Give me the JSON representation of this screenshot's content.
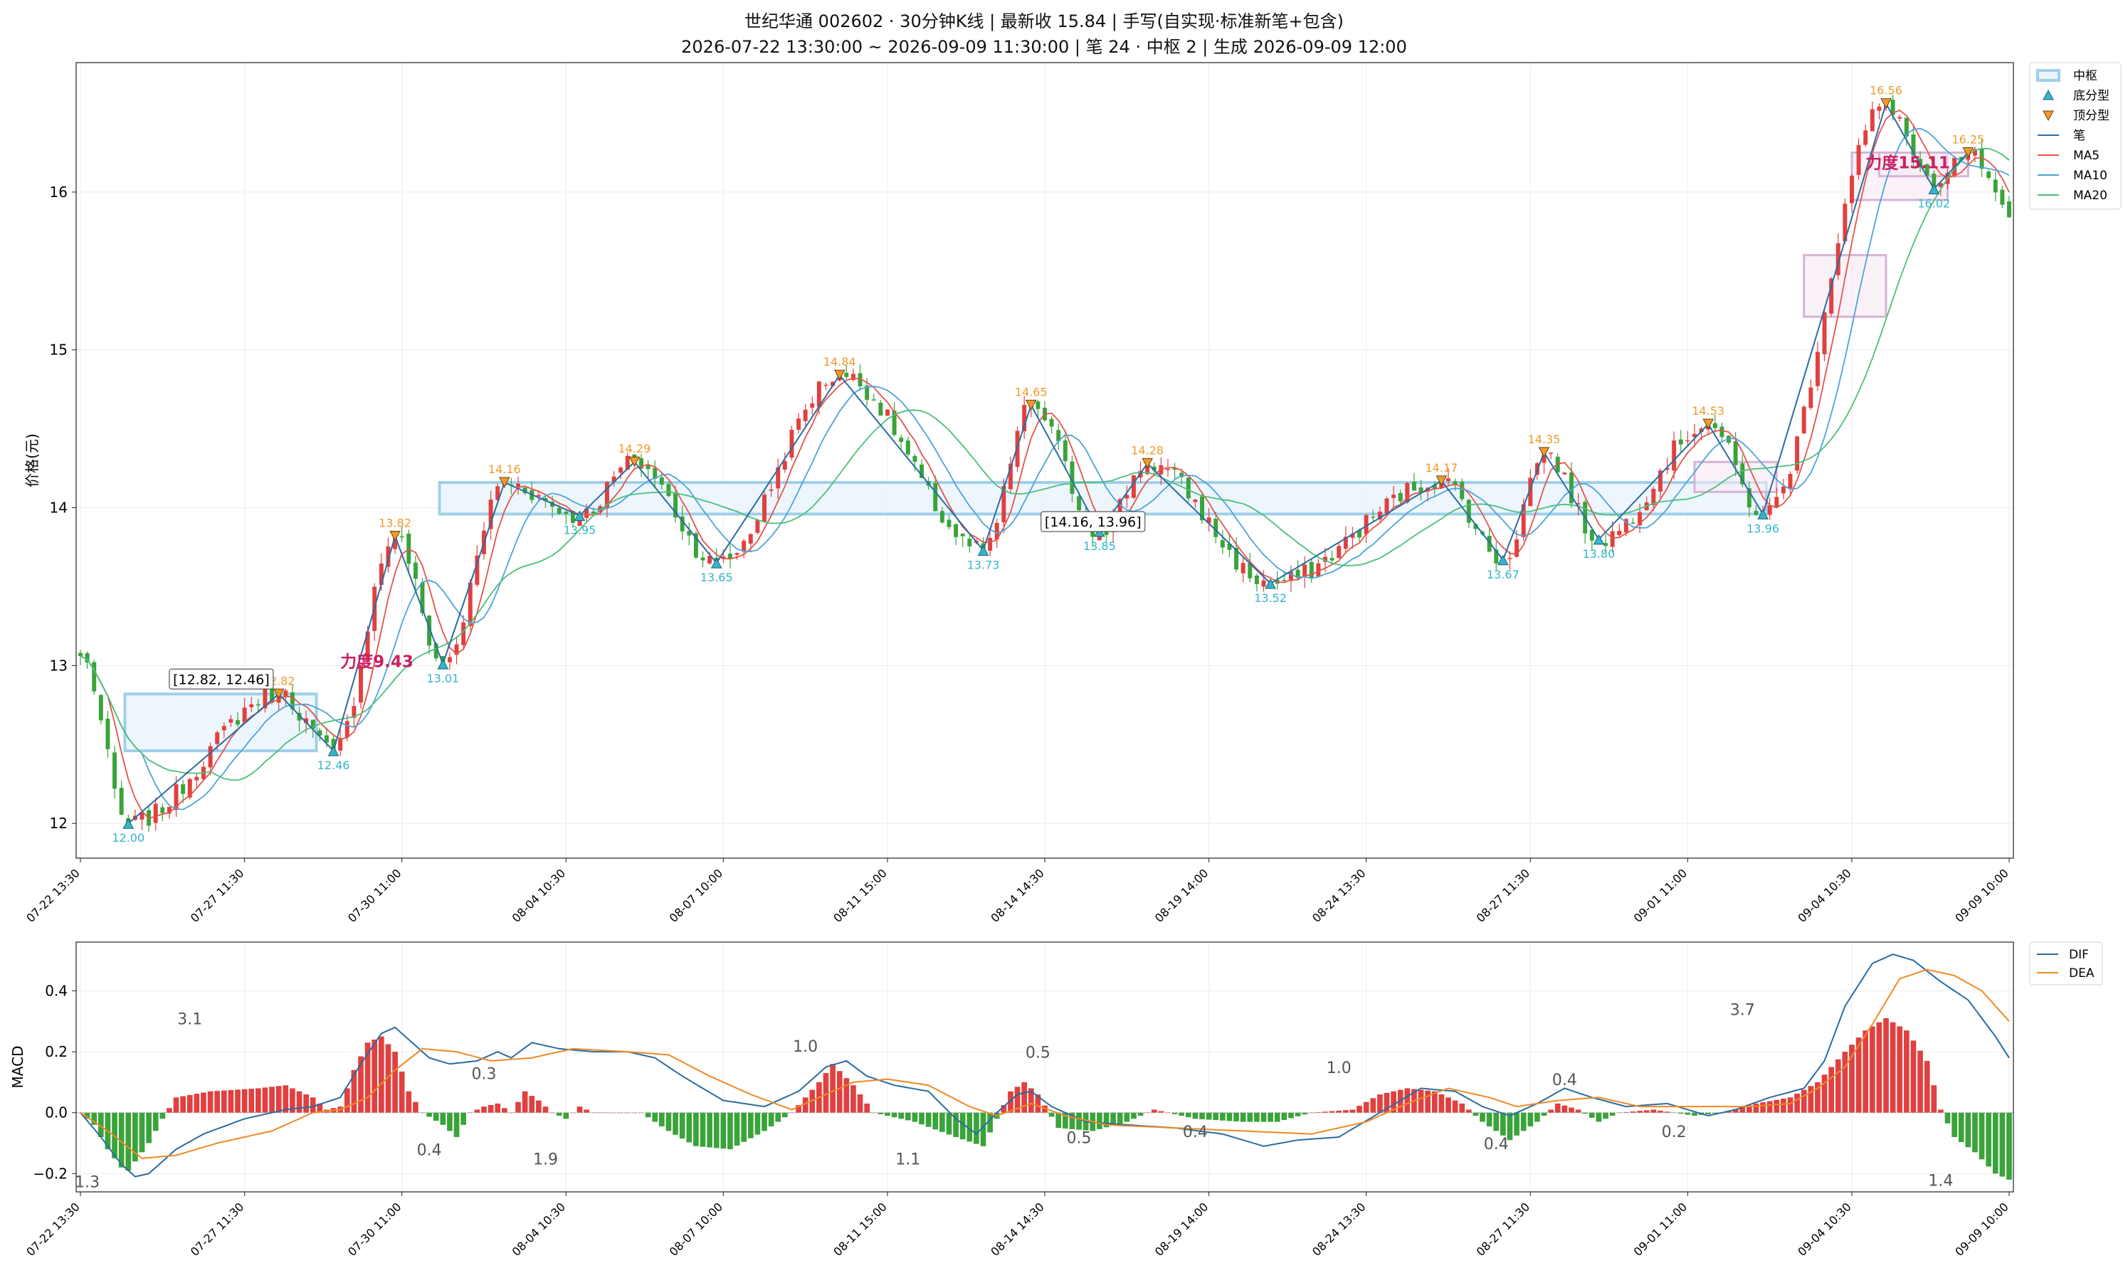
{
  "title": {
    "line1": "世纪华通 002602 · 30分钟K线 | 最新收 15.84 | 手写(自实现·标准新笔+包含)",
    "line2": "2026-07-22 13:30:00 ~ 2026-09-09 11:30:00 | 笔 24 · 中枢 2 | 生成 2026-09-09 12:00"
  },
  "colors": {
    "up": "#e0403f",
    "down": "#3aa33a",
    "bi": "#2b6ca3",
    "ma5": "#e5534b",
    "ma10": "#4ea3d8",
    "ma20": "#4cbf7a",
    "center_fill": "#eaf4fb",
    "center_edge": "#9fcfe9",
    "bottom": "#33b6c9",
    "top": "#f09a2a",
    "dif": "#2b6ca3",
    "dea": "#f08a24",
    "force": "#cc1e63"
  },
  "legend_price": [
    "中枢",
    "底分型",
    "顶分型",
    "笔",
    "MA5",
    "MA10",
    "MA20"
  ],
  "legend_macd": [
    "DIF",
    "DEA"
  ],
  "chart_data": [
    {
      "type": "candlestick",
      "ylabel": "价格(元)",
      "ylim": [
        11.78,
        16.82
      ],
      "yticks": [
        12,
        13,
        14,
        15,
        16
      ],
      "xticks": [
        "07-22 13:30",
        "07-27 11:30",
        "07-30 11:00",
        "08-04 10:30",
        "08-07 10:00",
        "08-11 15:00",
        "08-14 14:30",
        "08-19 14:00",
        "08-24 13:30",
        "08-27 11:30",
        "09-01 11:00",
        "09-04 10:30",
        "09-09 10:00"
      ],
      "n_bars": 283,
      "bi_points": [
        {
          "i": 7,
          "p": 12.0,
          "kind": "bottom"
        },
        {
          "i": 29,
          "p": 12.82,
          "kind": "top"
        },
        {
          "i": 37,
          "p": 12.46,
          "kind": "bottom"
        },
        {
          "i": 46,
          "p": 13.82,
          "kind": "top"
        },
        {
          "i": 53,
          "p": 13.01,
          "kind": "bottom"
        },
        {
          "i": 62,
          "p": 14.16,
          "kind": "top"
        },
        {
          "i": 73,
          "p": 13.95,
          "kind": "bottom"
        },
        {
          "i": 81,
          "p": 14.29,
          "kind": "top"
        },
        {
          "i": 93,
          "p": 13.65,
          "kind": "bottom"
        },
        {
          "i": 111,
          "p": 14.84,
          "kind": "top"
        },
        {
          "i": 132,
          "p": 13.73,
          "kind": "bottom"
        },
        {
          "i": 139,
          "p": 14.65,
          "kind": "top"
        },
        {
          "i": 149,
          "p": 13.85,
          "kind": "bottom"
        },
        {
          "i": 156,
          "p": 14.28,
          "kind": "top"
        },
        {
          "i": 174,
          "p": 13.52,
          "kind": "bottom"
        },
        {
          "i": 199,
          "p": 14.17,
          "kind": "top"
        },
        {
          "i": 208,
          "p": 13.67,
          "kind": "bottom"
        },
        {
          "i": 214,
          "p": 14.35,
          "kind": "top"
        },
        {
          "i": 222,
          "p": 13.8,
          "kind": "bottom"
        },
        {
          "i": 238,
          "p": 14.53,
          "kind": "top"
        },
        {
          "i": 246,
          "p": 13.96,
          "kind": "bottom"
        },
        {
          "i": 264,
          "p": 16.56,
          "kind": "top"
        },
        {
          "i": 271,
          "p": 16.02,
          "kind": "bottom"
        },
        {
          "i": 276,
          "p": 16.25,
          "kind": "top"
        }
      ],
      "centers": [
        {
          "i0": 7,
          "i1": 34,
          "top": 12.82,
          "bottom": 12.46,
          "label": "[12.82, 12.46]"
        },
        {
          "i0": 53,
          "i1": 246,
          "top": 14.16,
          "bottom": 13.96,
          "label": "[14.16, 13.96]"
        }
      ],
      "zones": [
        {
          "i0": 236,
          "i1": 248,
          "top": 14.29,
          "bottom": 14.1
        },
        {
          "i0": 252,
          "i1": 264,
          "top": 15.6,
          "bottom": 15.21
        },
        {
          "i0": 259,
          "i1": 273,
          "top": 16.25,
          "bottom": 15.95
        },
        {
          "i0": 263,
          "i1": 276,
          "top": 16.25,
          "bottom": 16.1
        }
      ],
      "force_labels": [
        {
          "i": 38,
          "p": 12.99,
          "text": "力度9.43"
        },
        {
          "i": 261,
          "p": 16.15,
          "text": "力度15.11"
        }
      ]
    },
    {
      "type": "macd",
      "ylabel": "MACD",
      "ylim": [
        -0.26,
        0.56
      ],
      "yticks": [
        -0.2,
        0.0,
        0.2,
        0.4
      ],
      "ytick_labels": [
        "−0.2",
        "0.0",
        "0.2",
        "0.4"
      ],
      "xticks": [
        "07-22 13:30",
        "07-27 11:30",
        "07-30 11:00",
        "08-04 10:30",
        "08-07 10:00",
        "08-11 15:00",
        "08-14 14:30",
        "08-19 14:00",
        "08-24 13:30",
        "08-27 11:30",
        "09-01 11:00",
        "09-04 10:30",
        "09-09 10:00"
      ],
      "hist_keyframes": [
        [
          0,
          0
        ],
        [
          2,
          -0.04
        ],
        [
          4,
          -0.12
        ],
        [
          6,
          -0.18
        ],
        [
          7,
          -0.19
        ],
        [
          10,
          -0.1
        ],
        [
          12,
          -0.02
        ],
        [
          14,
          0.05
        ],
        [
          19,
          0.07
        ],
        [
          26,
          0.08
        ],
        [
          30,
          0.09
        ],
        [
          34,
          0.05
        ],
        [
          36,
          0.01
        ],
        [
          38,
          0.02
        ],
        [
          40,
          0.14
        ],
        [
          42,
          0.23
        ],
        [
          44,
          0.25
        ],
        [
          46,
          0.2
        ],
        [
          48,
          0.07
        ],
        [
          50,
          0.0
        ],
        [
          53,
          -0.04
        ],
        [
          55,
          -0.08
        ],
        [
          57,
          0.0
        ],
        [
          59,
          0.02
        ],
        [
          61,
          0.03
        ],
        [
          63,
          0.0
        ],
        [
          65,
          0.07
        ],
        [
          67,
          0.04
        ],
        [
          69,
          0.0
        ],
        [
          71,
          -0.02
        ],
        [
          73,
          0.02
        ],
        [
          75,
          0.0
        ],
        [
          82,
          0.0
        ],
        [
          86,
          -0.06
        ],
        [
          90,
          -0.11
        ],
        [
          95,
          -0.12
        ],
        [
          100,
          -0.06
        ],
        [
          104,
          0.0
        ],
        [
          108,
          0.1
        ],
        [
          110,
          0.16
        ],
        [
          113,
          0.09
        ],
        [
          116,
          0.0
        ],
        [
          122,
          -0.03
        ],
        [
          128,
          -0.08
        ],
        [
          132,
          -0.11
        ],
        [
          134,
          -0.02
        ],
        [
          136,
          0.07
        ],
        [
          138,
          0.1
        ],
        [
          140,
          0.06
        ],
        [
          143,
          -0.05
        ],
        [
          148,
          -0.06
        ],
        [
          153,
          -0.03
        ],
        [
          157,
          0.01
        ],
        [
          163,
          -0.02
        ],
        [
          170,
          -0.03
        ],
        [
          175,
          -0.03
        ],
        [
          180,
          0.0
        ],
        [
          186,
          0.01
        ],
        [
          190,
          0.06
        ],
        [
          194,
          0.08
        ],
        [
          198,
          0.07
        ],
        [
          202,
          0.03
        ],
        [
          205,
          -0.03
        ],
        [
          209,
          -0.09
        ],
        [
          213,
          -0.03
        ],
        [
          216,
          0.03
        ],
        [
          219,
          0.01
        ],
        [
          222,
          -0.03
        ],
        [
          225,
          0.0
        ],
        [
          230,
          0.01
        ],
        [
          236,
          -0.01
        ],
        [
          240,
          0.0
        ],
        [
          245,
          0.03
        ],
        [
          250,
          0.05
        ],
        [
          254,
          0.1
        ],
        [
          258,
          0.2
        ],
        [
          261,
          0.27
        ],
        [
          264,
          0.31
        ],
        [
          267,
          0.27
        ],
        [
          270,
          0.17
        ],
        [
          272,
          0.01
        ],
        [
          274,
          -0.08
        ],
        [
          277,
          -0.13
        ],
        [
          280,
          -0.2
        ],
        [
          282,
          -0.22
        ]
      ],
      "dif_keyframes": [
        [
          0,
          0.0
        ],
        [
          3,
          -0.08
        ],
        [
          6,
          -0.17
        ],
        [
          8,
          -0.21
        ],
        [
          10,
          -0.2
        ],
        [
          14,
          -0.12
        ],
        [
          18,
          -0.07
        ],
        [
          24,
          -0.02
        ],
        [
          30,
          0.01
        ],
        [
          34,
          0.02
        ],
        [
          38,
          0.05
        ],
        [
          41,
          0.16
        ],
        [
          44,
          0.26
        ],
        [
          46,
          0.28
        ],
        [
          48,
          0.24
        ],
        [
          51,
          0.18
        ],
        [
          54,
          0.16
        ],
        [
          58,
          0.17
        ],
        [
          61,
          0.2
        ],
        [
          63,
          0.18
        ],
        [
          66,
          0.23
        ],
        [
          70,
          0.21
        ],
        [
          75,
          0.2
        ],
        [
          80,
          0.2
        ],
        [
          84,
          0.18
        ],
        [
          88,
          0.12
        ],
        [
          94,
          0.04
        ],
        [
          100,
          0.02
        ],
        [
          105,
          0.07
        ],
        [
          109,
          0.15
        ],
        [
          112,
          0.17
        ],
        [
          115,
          0.12
        ],
        [
          119,
          0.09
        ],
        [
          124,
          0.07
        ],
        [
          128,
          -0.02
        ],
        [
          131,
          -0.07
        ],
        [
          134,
          0.0
        ],
        [
          137,
          0.06
        ],
        [
          139,
          0.07
        ],
        [
          142,
          0.02
        ],
        [
          147,
          -0.03
        ],
        [
          153,
          -0.04
        ],
        [
          160,
          -0.05
        ],
        [
          167,
          -0.07
        ],
        [
          173,
          -0.11
        ],
        [
          178,
          -0.09
        ],
        [
          184,
          -0.08
        ],
        [
          190,
          0.0
        ],
        [
          196,
          0.08
        ],
        [
          201,
          0.07
        ],
        [
          205,
          0.02
        ],
        [
          209,
          -0.01
        ],
        [
          213,
          0.03
        ],
        [
          217,
          0.08
        ],
        [
          221,
          0.05
        ],
        [
          226,
          0.02
        ],
        [
          232,
          0.03
        ],
        [
          238,
          -0.01
        ],
        [
          242,
          0.01
        ],
        [
          247,
          0.05
        ],
        [
          252,
          0.08
        ],
        [
          255,
          0.17
        ],
        [
          258,
          0.35
        ],
        [
          262,
          0.49
        ],
        [
          265,
          0.52
        ],
        [
          268,
          0.5
        ],
        [
          272,
          0.43
        ],
        [
          276,
          0.37
        ],
        [
          280,
          0.25
        ],
        [
          282,
          0.18
        ]
      ],
      "dea_keyframes": [
        [
          0,
          0.0
        ],
        [
          4,
          -0.06
        ],
        [
          9,
          -0.15
        ],
        [
          14,
          -0.14
        ],
        [
          20,
          -0.1
        ],
        [
          28,
          -0.06
        ],
        [
          34,
          0.0
        ],
        [
          38,
          0.01
        ],
        [
          42,
          0.05
        ],
        [
          46,
          0.14
        ],
        [
          50,
          0.21
        ],
        [
          55,
          0.2
        ],
        [
          60,
          0.17
        ],
        [
          66,
          0.18
        ],
        [
          72,
          0.21
        ],
        [
          80,
          0.2
        ],
        [
          86,
          0.19
        ],
        [
          92,
          0.12
        ],
        [
          98,
          0.06
        ],
        [
          104,
          0.01
        ],
        [
          108,
          0.05
        ],
        [
          113,
          0.1
        ],
        [
          118,
          0.11
        ],
        [
          124,
          0.09
        ],
        [
          130,
          0.02
        ],
        [
          134,
          -0.01
        ],
        [
          139,
          0.03
        ],
        [
          144,
          -0.01
        ],
        [
          150,
          -0.04
        ],
        [
          160,
          -0.05
        ],
        [
          170,
          -0.06
        ],
        [
          180,
          -0.07
        ],
        [
          188,
          -0.03
        ],
        [
          194,
          0.03
        ],
        [
          200,
          0.08
        ],
        [
          206,
          0.05
        ],
        [
          210,
          0.02
        ],
        [
          216,
          0.04
        ],
        [
          222,
          0.05
        ],
        [
          228,
          0.02
        ],
        [
          236,
          0.02
        ],
        [
          244,
          0.02
        ],
        [
          250,
          0.03
        ],
        [
          254,
          0.08
        ],
        [
          258,
          0.15
        ],
        [
          262,
          0.29
        ],
        [
          266,
          0.44
        ],
        [
          270,
          0.47
        ],
        [
          274,
          0.45
        ],
        [
          278,
          0.4
        ],
        [
          282,
          0.3
        ]
      ],
      "annotations": [
        {
          "i": 1,
          "v": -0.245,
          "text": "1.3"
        },
        {
          "i": 16,
          "v": 0.29,
          "text": "3.1"
        },
        {
          "i": 51,
          "v": -0.14,
          "text": "0.4"
        },
        {
          "i": 59,
          "v": 0.11,
          "text": "0.3"
        },
        {
          "i": 68,
          "v": -0.17,
          "text": "1.9"
        },
        {
          "i": 106,
          "v": 0.2,
          "text": "1.0"
        },
        {
          "i": 121,
          "v": -0.17,
          "text": "1.1"
        },
        {
          "i": 140,
          "v": 0.18,
          "text": "0.5"
        },
        {
          "i": 146,
          "v": -0.1,
          "text": "0.5"
        },
        {
          "i": 163,
          "v": -0.08,
          "text": "0.4"
        },
        {
          "i": 184,
          "v": 0.13,
          "text": "1.0"
        },
        {
          "i": 207,
          "v": -0.12,
          "text": "0.4"
        },
        {
          "i": 217,
          "v": 0.09,
          "text": "0.4"
        },
        {
          "i": 233,
          "v": -0.08,
          "text": "0.2"
        },
        {
          "i": 243,
          "v": 0.32,
          "text": "3.7"
        },
        {
          "i": 272,
          "v": -0.24,
          "text": "1.4"
        }
      ]
    }
  ]
}
